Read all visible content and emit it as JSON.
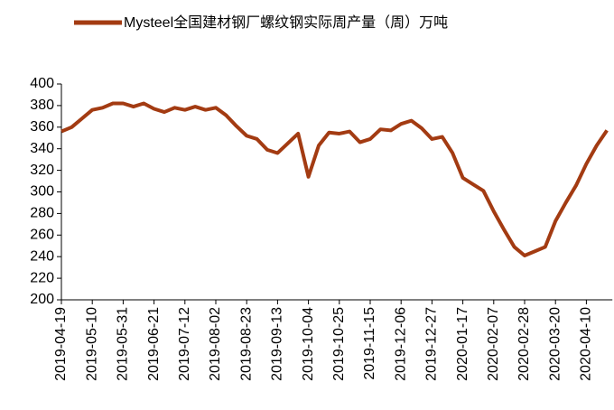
{
  "chart_data": {
    "type": "line",
    "categories": [
      "2019-04-19",
      null,
      null,
      "2019-05-10",
      null,
      null,
      "2019-05-31",
      null,
      null,
      "2019-06-21",
      null,
      null,
      "2019-07-12",
      null,
      null,
      "2019-08-02",
      null,
      null,
      "2019-08-23",
      null,
      null,
      "2019-09-13",
      null,
      null,
      "2019-10-04",
      null,
      null,
      "2019-10-25",
      null,
      null,
      "2019-11-15",
      null,
      null,
      "2019-12-06",
      null,
      null,
      "2019-12-27",
      null,
      null,
      "2020-01-17",
      null,
      null,
      "2020-02-07",
      null,
      null,
      "2020-02-28",
      null,
      null,
      "2020-03-20",
      null,
      null,
      "2020-04-10",
      null,
      null
    ],
    "series": [
      {
        "name": "Mysteel全国建材钢厂螺纹钢实际周产量（周）万吨",
        "color": "#a33b12",
        "values": [
          356,
          360,
          368,
          376,
          378,
          382,
          382,
          379,
          382,
          377,
          374,
          378,
          376,
          379,
          376,
          378,
          371,
          361,
          352,
          349,
          339,
          336,
          345,
          354,
          314,
          343,
          355,
          354,
          356,
          346,
          349,
          358,
          357,
          363,
          366,
          359,
          349,
          351,
          336,
          313,
          307,
          301,
          282,
          265,
          249,
          241,
          245,
          249,
          273,
          290,
          306,
          326,
          343,
          357
        ]
      }
    ],
    "ylim": [
      200,
      400
    ],
    "yticks": [
      200,
      220,
      240,
      260,
      280,
      300,
      320,
      340,
      360,
      380,
      400
    ],
    "legend": "top"
  }
}
